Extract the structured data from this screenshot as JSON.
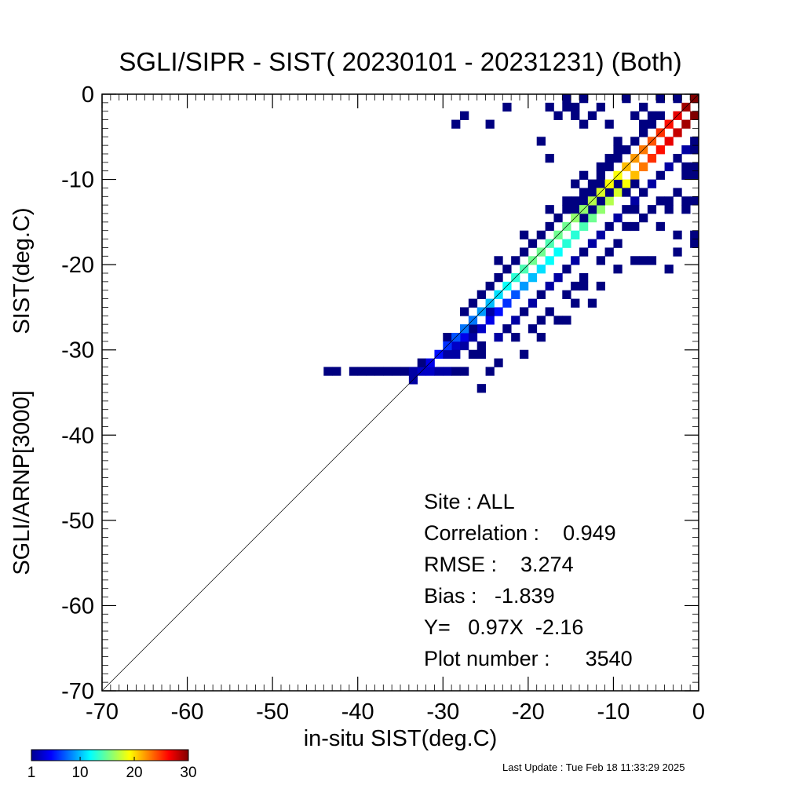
{
  "chart_data": {
    "type": "heatmap",
    "title": "SGLI/SIPR - SIST( 20230101 - 20231231) (Both)",
    "xlabel": "in-situ SIST(deg.C)",
    "ylabel_lines": [
      "SGLI/ARNP[3000]",
      "SIST(deg.C)"
    ],
    "xlim": [
      -70,
      0
    ],
    "ylim": [
      -70,
      0
    ],
    "x_ticks": [
      "-70",
      "-60",
      "-50",
      "-40",
      "-30",
      "-20",
      "-10",
      "0"
    ],
    "y_ticks": [
      "-70",
      "-60",
      "-50",
      "-40",
      "-30",
      "-20",
      "-10",
      "0"
    ],
    "bin_size": 1,
    "one_to_one_line": true,
    "statistics": {
      "site": "Site : ALL",
      "correlation": "Correlation :    0.949",
      "rmse": "RMSE :    3.274",
      "bias": "Bias :   -1.839",
      "fit": "Y=   0.97X  -2.16",
      "plot_number": "Plot number :      3540"
    },
    "colorbar": {
      "colormap": "jet",
      "range": [
        1,
        30
      ],
      "ticks": [
        "1",
        "10",
        "20",
        "30"
      ]
    },
    "band_cells": [
      [
        -34,
        -34,
        2
      ],
      [
        -33,
        -33,
        3
      ],
      [
        -32,
        -32,
        4
      ],
      [
        -31,
        -31,
        5
      ],
      [
        -30,
        -30,
        6
      ],
      [
        -29,
        -29,
        7
      ],
      [
        -28,
        -28,
        8
      ],
      [
        -27,
        -27,
        8
      ],
      [
        -26,
        -26,
        9
      ],
      [
        -25,
        -25,
        10
      ],
      [
        -24,
        -24,
        11
      ],
      [
        -23,
        -23,
        12
      ],
      [
        -22,
        -22,
        13
      ],
      [
        -21,
        -21,
        14
      ],
      [
        -20,
        -20,
        15
      ],
      [
        -19,
        -19,
        15
      ],
      [
        -18,
        -18,
        14
      ],
      [
        -17,
        -17,
        15
      ],
      [
        -16,
        -16,
        15
      ],
      [
        -15,
        -15,
        16
      ],
      [
        -14,
        -14,
        16
      ],
      [
        -13,
        -13,
        17
      ],
      [
        -12,
        -12,
        18
      ],
      [
        -11,
        -11,
        19
      ],
      [
        -10,
        -10,
        19
      ],
      [
        -9,
        -9,
        21
      ],
      [
        -8,
        -8,
        22
      ],
      [
        -7,
        -7,
        23
      ],
      [
        -6,
        -6,
        24
      ],
      [
        -5,
        -5,
        25
      ],
      [
        -4,
        -4,
        26
      ],
      [
        -3,
        -3,
        27
      ],
      [
        -2,
        -2,
        29
      ],
      [
        -1,
        -1,
        30
      ]
    ],
    "cells": [
      [
        -44,
        -33,
        1
      ],
      [
        -43,
        -33,
        1
      ],
      [
        -41,
        -33,
        1
      ],
      [
        -40,
        -33,
        1
      ],
      [
        -39,
        -33,
        1
      ],
      [
        -38,
        -33,
        1
      ],
      [
        -37,
        -33,
        1
      ],
      [
        -36,
        -33,
        1
      ],
      [
        -35,
        -33,
        1
      ],
      [
        -34,
        -33,
        2
      ],
      [
        -33,
        -33,
        2
      ],
      [
        -32,
        -33,
        3
      ],
      [
        -31,
        -33,
        2
      ],
      [
        -30,
        -33,
        2
      ],
      [
        -29,
        -33,
        1
      ],
      [
        -28,
        -33,
        1
      ],
      [
        -25,
        -33,
        1
      ],
      [
        -33,
        -32,
        1
      ],
      [
        -31,
        -31,
        1
      ],
      [
        -30,
        -31,
        2
      ],
      [
        -29,
        -30,
        3
      ],
      [
        -28,
        -30,
        2
      ],
      [
        -28,
        -29,
        4
      ],
      [
        -27,
        -29,
        2
      ],
      [
        -26,
        -28,
        3
      ],
      [
        -25,
        -27,
        4
      ],
      [
        -24,
        -26,
        5
      ],
      [
        -25,
        -26,
        2
      ],
      [
        -23,
        -25,
        6
      ],
      [
        -22,
        -24,
        7
      ],
      [
        -21,
        -23,
        9
      ],
      [
        -20,
        -22,
        10
      ],
      [
        -19,
        -21,
        11
      ],
      [
        -18,
        -20,
        12
      ],
      [
        -17,
        -19,
        12
      ],
      [
        -16,
        -18,
        13
      ],
      [
        -15,
        -17,
        13
      ],
      [
        -14,
        -16,
        14
      ],
      [
        -13,
        -15,
        15
      ],
      [
        -12,
        -14,
        16
      ],
      [
        -11,
        -13,
        17
      ],
      [
        -10,
        -12,
        18
      ],
      [
        -9,
        -11,
        19
      ],
      [
        -8,
        -10,
        21
      ],
      [
        -7,
        -9,
        23
      ],
      [
        -6,
        -8,
        25
      ],
      [
        -5,
        -7,
        26
      ],
      [
        -4,
        -6,
        27
      ],
      [
        -3,
        -5,
        28
      ],
      [
        -2,
        -4,
        29
      ],
      [
        -1,
        -3,
        30
      ],
      [
        0,
        -2,
        30
      ],
      [
        0,
        -1,
        28
      ],
      [
        0,
        -3,
        12
      ],
      [
        0,
        -5,
        8
      ],
      [
        -29,
        -31,
        2
      ],
      [
        -27,
        -31,
        1
      ],
      [
        -26,
        -30,
        1
      ],
      [
        -27,
        -28,
        1
      ],
      [
        -26,
        -31,
        1
      ],
      [
        -24,
        -29,
        2
      ],
      [
        -23,
        -28,
        1
      ],
      [
        -22,
        -27,
        2
      ],
      [
        -21,
        -26,
        1
      ],
      [
        -20,
        -25,
        2
      ],
      [
        -19,
        -24,
        1
      ],
      [
        -18,
        -23,
        2
      ],
      [
        -17,
        -22,
        2
      ],
      [
        -16,
        -21,
        1
      ],
      [
        -15,
        -20,
        2
      ],
      [
        -14,
        -19,
        1
      ],
      [
        -13,
        -18,
        2
      ],
      [
        -12,
        -17,
        2
      ],
      [
        -11,
        -16,
        1
      ],
      [
        -10,
        -15,
        2
      ],
      [
        -9,
        -14,
        1
      ],
      [
        -8,
        -13,
        2
      ],
      [
        -7,
        -12,
        1
      ],
      [
        -6,
        -11,
        2
      ],
      [
        -5,
        -10,
        1
      ],
      [
        -4,
        -9,
        2
      ],
      [
        -3,
        -8,
        1
      ],
      [
        -2,
        -7,
        2
      ],
      [
        -1,
        -6,
        1
      ],
      [
        -24,
        -32,
        1
      ],
      [
        -22,
        -29,
        1
      ],
      [
        -20,
        -28,
        1
      ],
      [
        -19,
        -27,
        1
      ],
      [
        -18,
        -26,
        1
      ],
      [
        -16,
        -24,
        1
      ],
      [
        -15,
        -23,
        1
      ],
      [
        -14,
        -22,
        1
      ],
      [
        -12,
        -20,
        1
      ],
      [
        -11,
        -19,
        1
      ],
      [
        -10,
        -18,
        1
      ],
      [
        -8,
        -16,
        1
      ],
      [
        -7,
        -15,
        1
      ],
      [
        -6,
        -14,
        1
      ],
      [
        -4,
        -13,
        1
      ],
      [
        -3,
        -12,
        1
      ],
      [
        -2,
        -10,
        1
      ],
      [
        -1,
        -9,
        1
      ],
      [
        0,
        -8,
        1
      ],
      [
        -27,
        -25,
        1
      ],
      [
        -28,
        -26,
        1
      ],
      [
        -26,
        -24,
        1
      ],
      [
        -25,
        -23,
        1
      ],
      [
        -24,
        -22,
        1
      ],
      [
        -23,
        -21,
        1
      ],
      [
        -22,
        -20,
        1
      ],
      [
        -21,
        -19,
        1
      ],
      [
        -20,
        -18,
        1
      ],
      [
        -19,
        -17,
        1
      ],
      [
        -18,
        -16,
        1
      ],
      [
        -17,
        -15,
        1
      ],
      [
        -16,
        -14,
        1
      ],
      [
        -15,
        -13,
        1
      ],
      [
        -14,
        -12,
        1
      ],
      [
        -13,
        -11,
        1
      ],
      [
        -12,
        -10,
        1
      ],
      [
        -11,
        -9,
        1
      ],
      [
        -10,
        -8,
        1
      ],
      [
        -9,
        -7,
        1
      ],
      [
        -8,
        -6,
        1
      ],
      [
        -7,
        -5,
        1
      ],
      [
        -6,
        -4,
        1
      ],
      [
        -5,
        -3,
        1
      ],
      [
        -30,
        -29,
        1
      ],
      [
        -24,
        -20,
        1
      ],
      [
        -21,
        -17,
        1
      ],
      [
        -18,
        -14,
        1
      ],
      [
        -15,
        -11,
        1
      ],
      [
        -14,
        -10,
        1
      ],
      [
        -10,
        -6,
        1
      ],
      [
        -12,
        -9,
        1
      ],
      [
        -16,
        -27,
        1
      ],
      [
        -17,
        -27,
        1
      ],
      [
        -19,
        -29,
        1
      ],
      [
        -21,
        -31,
        1
      ],
      [
        -14,
        -23,
        1
      ],
      [
        -13,
        -25,
        1
      ],
      [
        -12,
        -23,
        1
      ],
      [
        -15,
        -25,
        1
      ],
      [
        -6,
        -20,
        1
      ],
      [
        -7,
        -20,
        1
      ],
      [
        -8,
        -20,
        1
      ],
      [
        -4,
        -21,
        1
      ],
      [
        -3,
        -17,
        1
      ],
      [
        -9,
        -16,
        1
      ],
      [
        -10,
        -21,
        1
      ],
      [
        -5,
        -16,
        1
      ],
      [
        -1,
        -18,
        1
      ],
      [
        -3,
        -19,
        1
      ],
      [
        0,
        -16,
        1
      ],
      [
        0,
        -18,
        1
      ],
      [
        0,
        -20,
        1
      ],
      [
        0,
        -22,
        1
      ],
      [
        -1,
        -17,
        1
      ],
      [
        -1,
        -13,
        1
      ],
      [
        -2,
        -13,
        1
      ],
      [
        -4,
        -14,
        1
      ],
      [
        0,
        -12,
        1
      ],
      [
        0,
        -14,
        1
      ],
      [
        0,
        -10,
        1
      ],
      [
        -1,
        -10,
        1
      ],
      [
        -2,
        -14,
        1
      ],
      [
        -5,
        -13,
        1
      ],
      [
        -8,
        -14,
        1
      ],
      [
        0,
        -7,
        1
      ],
      [
        -1,
        -7,
        1
      ],
      [
        -2,
        -9,
        1
      ],
      [
        0,
        -9,
        1
      ],
      [
        -15,
        -2,
        1
      ],
      [
        -16,
        -2,
        1
      ],
      [
        -15,
        -3,
        1
      ],
      [
        -17,
        -3,
        1
      ],
      [
        -14,
        -4,
        1
      ],
      [
        -13,
        -3,
        1
      ],
      [
        -12,
        -2,
        1
      ],
      [
        -14,
        -1,
        1
      ],
      [
        -16,
        -1,
        1
      ],
      [
        -18,
        -2,
        1
      ],
      [
        -11,
        -4,
        1
      ],
      [
        -7,
        -2,
        1
      ],
      [
        -8,
        -3,
        1
      ],
      [
        -7,
        -4,
        1
      ],
      [
        -9,
        -1,
        1
      ],
      [
        -5,
        -1,
        1
      ],
      [
        -3,
        -1,
        1
      ],
      [
        -6,
        -3,
        1
      ],
      [
        -25,
        -4,
        1
      ],
      [
        -28,
        -3,
        1
      ],
      [
        -29,
        -4,
        1
      ],
      [
        -23,
        -2,
        1
      ],
      [
        -19,
        -6,
        1
      ],
      [
        -18,
        -8,
        1
      ],
      [
        -10,
        -7,
        1
      ],
      [
        -11,
        -8,
        1
      ],
      [
        -12,
        -11,
        1
      ],
      [
        -13,
        -12,
        1
      ],
      [
        -14,
        -13,
        1
      ],
      [
        -10,
        -11,
        1
      ],
      [
        -11,
        -12,
        1
      ],
      [
        -12,
        -13,
        1
      ],
      [
        -9,
        -12,
        1
      ],
      [
        -8,
        -11,
        1
      ],
      [
        -13,
        -14,
        1
      ],
      [
        -14,
        -15,
        1
      ],
      [
        -15,
        -14,
        1
      ],
      [
        -16,
        -13,
        1
      ],
      [
        -12,
        -12,
        1
      ],
      [
        -26,
        -35,
        1
      ]
    ]
  },
  "footer": {
    "last_update": "Last Update : Tue Feb 18 11:33:29 2025"
  }
}
